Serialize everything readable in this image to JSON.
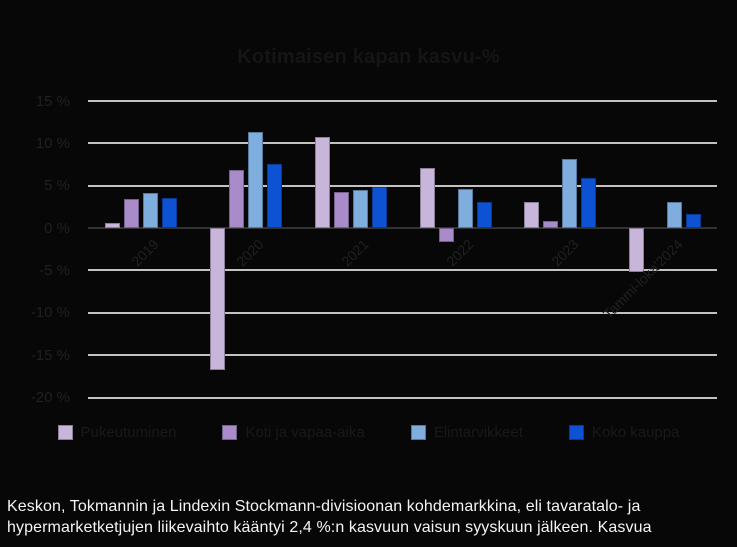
{
  "title": "Kotimaisen kapan kasvu-%",
  "chart_data": {
    "type": "bar",
    "title": "Kotimaisen kapan kasvu-%",
    "categories": [
      "2019",
      "2020",
      "2021",
      "2022",
      "2023",
      "Tammi-loka'2024"
    ],
    "series": [
      {
        "name": "Pukeutuminen",
        "color": "#c7b6da",
        "values": [
          0.6,
          -16.8,
          10.7,
          7.1,
          3.1,
          -5.2
        ]
      },
      {
        "name": "Koti ja vapaa-aika",
        "color": "#a98bc9",
        "values": [
          3.4,
          6.9,
          4.3,
          -1.7,
          0.8,
          0
        ]
      },
      {
        "name": "Elintarvikkeet",
        "color": "#7fadde",
        "values": [
          4.1,
          11.3,
          4.5,
          4.6,
          8.2,
          3.1
        ]
      },
      {
        "name": "Koko kauppa",
        "color": "#0d52d2",
        "values": [
          3.5,
          7.6,
          4.9,
          3.1,
          5.9,
          1.7
        ]
      }
    ],
    "y_axis": {
      "min": -20,
      "max": 15,
      "step": 5,
      "tick_suffix": " %"
    },
    "grid": true,
    "legend_position": "bottom"
  },
  "caption": {
    "lines": [
      "Keskon, Tokmannin ja Lindexin Stockmann-divisioonan kohdemarkkina, eli tavaratalo- ja",
      "hypermarketketjujen liikevaihto kääntyi 2,4 %:n kasvuun vaisun syyskuun jälkeen. Kasvua"
    ]
  },
  "colors": {
    "background": "#070707",
    "title_text": "#151515",
    "axis_text": "#202020",
    "legend_text": "#191919",
    "gridline": "#c2c2c2",
    "zero_line": "#323232",
    "caption_text": "#f4f4f4"
  }
}
